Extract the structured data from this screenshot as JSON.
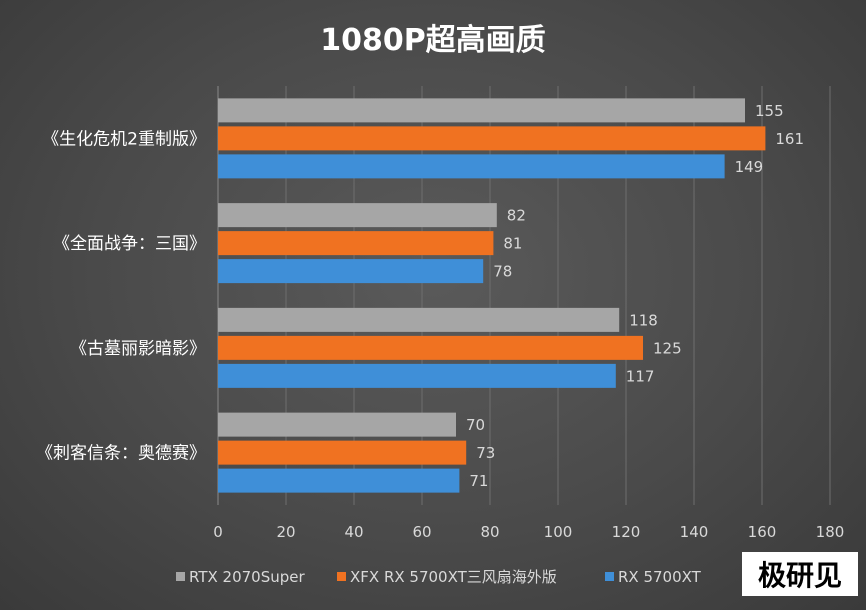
{
  "chart_data": {
    "type": "bar",
    "orientation": "horizontal",
    "title": "1080P超高画质",
    "categories": [
      "《生化危机2重制版》",
      "《全面战争：三国》",
      "《古墓丽影暗影》",
      "《刺客信条：奥德赛》"
    ],
    "series": [
      {
        "name": "RTX 2070Super",
        "color": "#a6a6a6",
        "values": [
          155,
          82,
          118,
          70
        ]
      },
      {
        "name": "XFX RX 5700XT三风扇海外版",
        "color": "#f07221",
        "values": [
          161,
          81,
          125,
          73
        ]
      },
      {
        "name": "RX 5700XT",
        "color": "#3f8fd8",
        "values": [
          149,
          78,
          117,
          71
        ]
      }
    ],
    "xlim": [
      0,
      180
    ],
    "xticks": [
      0,
      20,
      40,
      60,
      80,
      100,
      120,
      140,
      160,
      180
    ],
    "grid": true,
    "legend_position": "bottom"
  },
  "watermark": "极研见"
}
